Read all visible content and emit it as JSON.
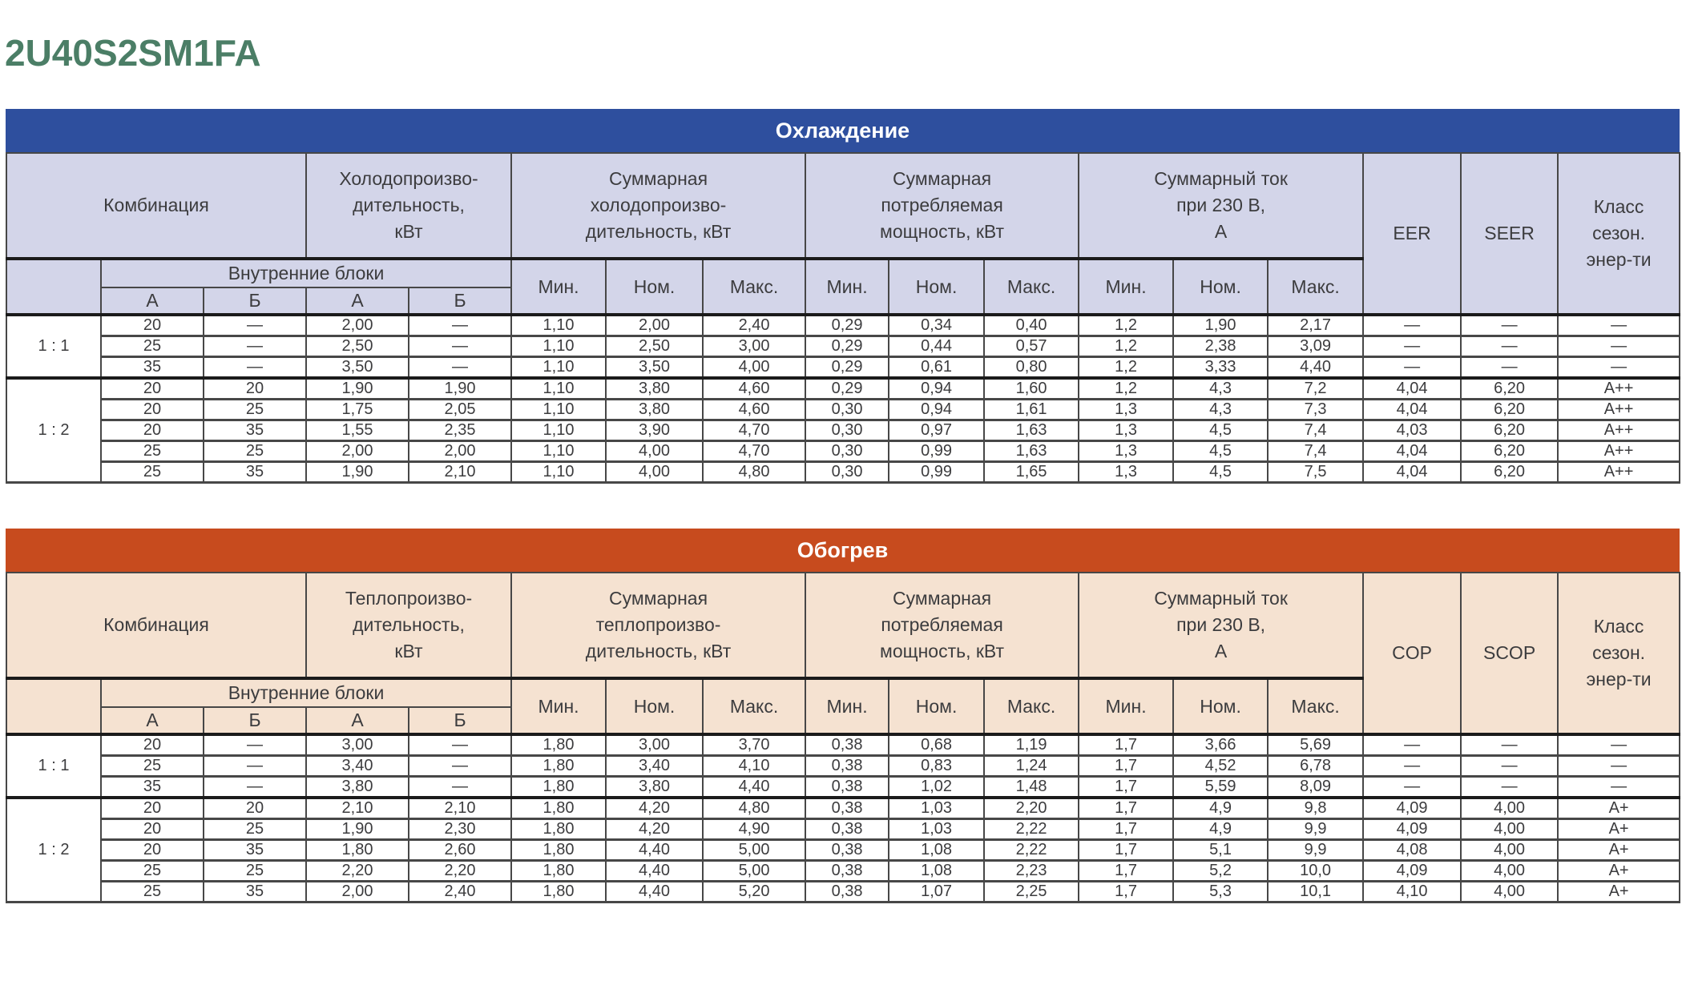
{
  "page_title": "2U40S2SM1FA",
  "accent_colors": {
    "title_green": "#4b7e66",
    "cooling_blue": "#2e4f9e",
    "heating_orange": "#c74b1e",
    "cooling_header_bg": "#d3d5e9",
    "heating_header_bg": "#f5e2d1",
    "text": "#3c3c3e"
  },
  "tables": [
    {
      "name": "cooling",
      "title": "Охлаждение",
      "bar_color": "#2e4f9e",
      "header_bg": "#d3d5e9",
      "headers": {
        "combination": "Комбинация",
        "capacity_lines": [
          "Холодопроизво-",
          "дительность,",
          "кВт"
        ],
        "total_capacity_lines": [
          "Суммарная",
          "холодопроизво-",
          "дительность, кВт"
        ],
        "total_power_lines": [
          "Суммарная",
          "потребляемая",
          "мощность, кВт"
        ],
        "total_current_lines": [
          "Суммарный ток",
          "при 230 В,",
          "А"
        ],
        "eff_nominal": "EER",
        "eff_seasonal": "SEER",
        "energy_class_lines": [
          "Класс",
          "сезон.",
          "энер-ти"
        ],
        "indoor_units": "Внутренние блоки",
        "unit_a": "А",
        "unit_b": "Б",
        "min": "Мин.",
        "nom": "Ном.",
        "max": "Макс."
      },
      "groups": [
        {
          "ratio": "1 : 1",
          "rows": [
            [
              "20",
              "—",
              "2,00",
              "—",
              "1,10",
              "2,00",
              "2,40",
              "0,29",
              "0,34",
              "0,40",
              "1,2",
              "1,90",
              "2,17",
              "—",
              "—",
              "—"
            ],
            [
              "25",
              "—",
              "2,50",
              "—",
              "1,10",
              "2,50",
              "3,00",
              "0,29",
              "0,44",
              "0,57",
              "1,2",
              "2,38",
              "3,09",
              "—",
              "—",
              "—"
            ],
            [
              "35",
              "—",
              "3,50",
              "—",
              "1,10",
              "3,50",
              "4,00",
              "0,29",
              "0,61",
              "0,80",
              "1,2",
              "3,33",
              "4,40",
              "—",
              "—",
              "—"
            ]
          ]
        },
        {
          "ratio": "1 : 2",
          "rows": [
            [
              "20",
              "20",
              "1,90",
              "1,90",
              "1,10",
              "3,80",
              "4,60",
              "0,29",
              "0,94",
              "1,60",
              "1,2",
              "4,3",
              "7,2",
              "4,04",
              "6,20",
              "A++"
            ],
            [
              "20",
              "25",
              "1,75",
              "2,05",
              "1,10",
              "3,80",
              "4,60",
              "0,30",
              "0,94",
              "1,61",
              "1,3",
              "4,3",
              "7,3",
              "4,04",
              "6,20",
              "A++"
            ],
            [
              "20",
              "35",
              "1,55",
              "2,35",
              "1,10",
              "3,90",
              "4,70",
              "0,30",
              "0,97",
              "1,63",
              "1,3",
              "4,5",
              "7,4",
              "4,03",
              "6,20",
              "A++"
            ],
            [
              "25",
              "25",
              "2,00",
              "2,00",
              "1,10",
              "4,00",
              "4,70",
              "0,30",
              "0,99",
              "1,63",
              "1,3",
              "4,5",
              "7,4",
              "4,04",
              "6,20",
              "A++"
            ],
            [
              "25",
              "35",
              "1,90",
              "2,10",
              "1,10",
              "4,00",
              "4,80",
              "0,30",
              "0,99",
              "1,65",
              "1,3",
              "4,5",
              "7,5",
              "4,04",
              "6,20",
              "A++"
            ]
          ]
        }
      ]
    },
    {
      "name": "heating",
      "title": "Обогрев",
      "bar_color": "#c74b1e",
      "header_bg": "#f5e2d1",
      "headers": {
        "combination": "Комбинация",
        "capacity_lines": [
          "Теплопроизво-",
          "дительность,",
          "кВт"
        ],
        "total_capacity_lines": [
          "Суммарная",
          "теплопроизво-",
          "дительность, кВт"
        ],
        "total_power_lines": [
          "Суммарная",
          "потребляемая",
          "мощность, кВт"
        ],
        "total_current_lines": [
          "Суммарный ток",
          "при 230 В,",
          "А"
        ],
        "eff_nominal": "COP",
        "eff_seasonal": "SCOP",
        "energy_class_lines": [
          "Класс",
          "сезон.",
          "энер-ти"
        ],
        "indoor_units": "Внутренние блоки",
        "unit_a": "А",
        "unit_b": "Б",
        "min": "Мин.",
        "nom": "Ном.",
        "max": "Макс."
      },
      "groups": [
        {
          "ratio": "1 : 1",
          "rows": [
            [
              "20",
              "—",
              "3,00",
              "—",
              "1,80",
              "3,00",
              "3,70",
              "0,38",
              "0,68",
              "1,19",
              "1,7",
              "3,66",
              "5,69",
              "—",
              "—",
              "—"
            ],
            [
              "25",
              "—",
              "3,40",
              "—",
              "1,80",
              "3,40",
              "4,10",
              "0,38",
              "0,83",
              "1,24",
              "1,7",
              "4,52",
              "6,78",
              "—",
              "—",
              "—"
            ],
            [
              "35",
              "—",
              "3,80",
              "—",
              "1,80",
              "3,80",
              "4,40",
              "0,38",
              "1,02",
              "1,48",
              "1,7",
              "5,59",
              "8,09",
              "—",
              "—",
              "—"
            ]
          ]
        },
        {
          "ratio": "1 : 2",
          "rows": [
            [
              "20",
              "20",
              "2,10",
              "2,10",
              "1,80",
              "4,20",
              "4,80",
              "0,38",
              "1,03",
              "2,20",
              "1,7",
              "4,9",
              "9,8",
              "4,09",
              "4,00",
              "A+"
            ],
            [
              "20",
              "25",
              "1,90",
              "2,30",
              "1,80",
              "4,20",
              "4,90",
              "0,38",
              "1,03",
              "2,22",
              "1,7",
              "4,9",
              "9,9",
              "4,09",
              "4,00",
              "A+"
            ],
            [
              "20",
              "35",
              "1,80",
              "2,60",
              "1,80",
              "4,40",
              "5,00",
              "0,38",
              "1,08",
              "2,22",
              "1,7",
              "5,1",
              "9,9",
              "4,08",
              "4,00",
              "A+"
            ],
            [
              "25",
              "25",
              "2,20",
              "2,20",
              "1,80",
              "4,40",
              "5,00",
              "0,38",
              "1,08",
              "2,23",
              "1,7",
              "5,2",
              "10,0",
              "4,09",
              "4,00",
              "A+"
            ],
            [
              "25",
              "35",
              "2,00",
              "2,40",
              "1,80",
              "4,40",
              "5,20",
              "0,38",
              "1,07",
              "2,25",
              "1,7",
              "5,3",
              "10,1",
              "4,10",
              "4,00",
              "A+"
            ]
          ]
        }
      ]
    }
  ]
}
